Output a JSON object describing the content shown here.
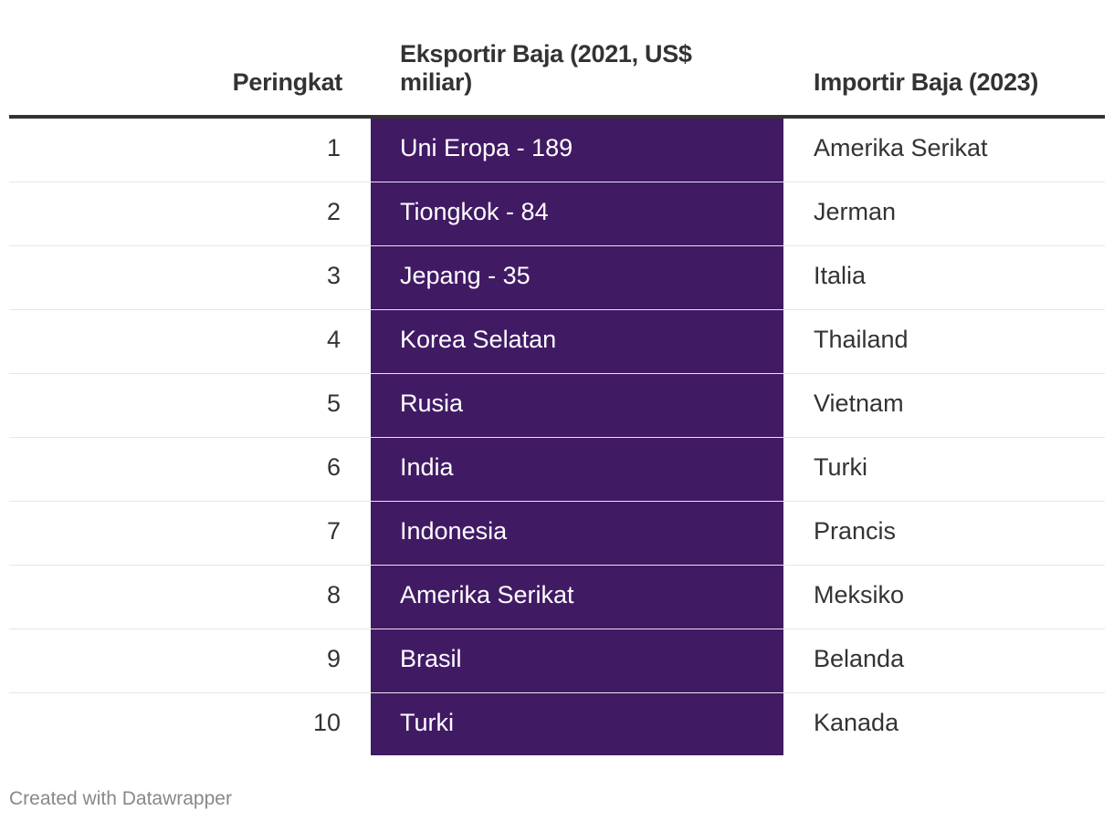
{
  "chart_data": {
    "type": "table",
    "columns": [
      "Peringkat",
      "Eksportir Baja (2021, US$ miliar)",
      "Importir Baja (2023)"
    ],
    "rows": [
      {
        "rank": "1",
        "exporter": "Uni Eropa - 189",
        "importer": "Amerika Serikat"
      },
      {
        "rank": "2",
        "exporter": "Tiongkok - 84",
        "importer": "Jerman"
      },
      {
        "rank": "3",
        "exporter": "Jepang - 35",
        "importer": "Italia"
      },
      {
        "rank": "4",
        "exporter": "Korea Selatan",
        "importer": "Thailand"
      },
      {
        "rank": "5",
        "exporter": "Rusia",
        "importer": "Vietnam"
      },
      {
        "rank": "6",
        "exporter": "India",
        "importer": "Turki"
      },
      {
        "rank": "7",
        "exporter": "Indonesia",
        "importer": "Prancis"
      },
      {
        "rank": "8",
        "exporter": "Amerika Serikat",
        "importer": "Meksiko"
      },
      {
        "rank": "9",
        "exporter": "Brasil",
        "importer": "Belanda"
      },
      {
        "rank": "10",
        "exporter": "Turki",
        "importer": "Kanada"
      }
    ],
    "highlight_column_color": "#411a64",
    "text_color": "#333333"
  },
  "footer": "Created with Datawrapper"
}
